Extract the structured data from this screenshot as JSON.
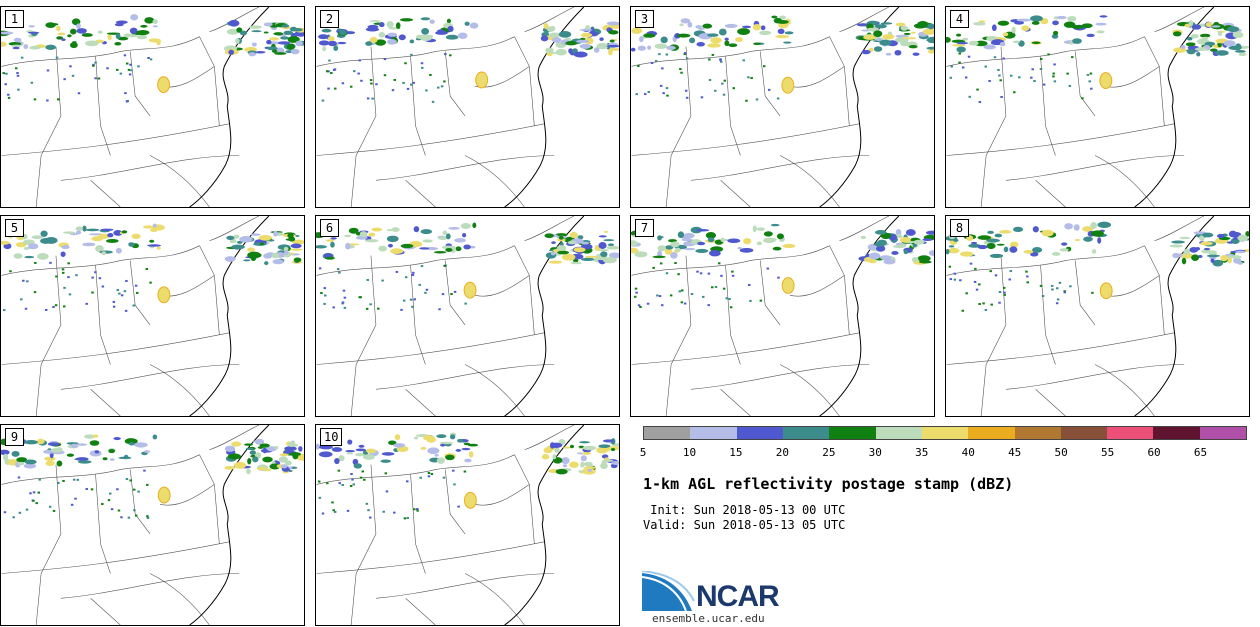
{
  "panels": [
    {
      "label": "1"
    },
    {
      "label": "2"
    },
    {
      "label": "3"
    },
    {
      "label": "4"
    },
    {
      "label": "5"
    },
    {
      "label": "6"
    },
    {
      "label": "7"
    },
    {
      "label": "8"
    },
    {
      "label": "9"
    },
    {
      "label": "10"
    }
  ],
  "colorbar": {
    "colors": [
      "#a0a0a0",
      "#b4bce8",
      "#5058d0",
      "#3c8c8c",
      "#108010",
      "#bcdcbc",
      "#ecdc6c",
      "#ecac20",
      "#b07830",
      "#885038",
      "#ec5078",
      "#601430",
      "#b050a8"
    ],
    "ticks": [
      "5",
      "10",
      "15",
      "20",
      "25",
      "30",
      "35",
      "40",
      "45",
      "50",
      "55",
      "60",
      "65"
    ]
  },
  "title": "1-km AGL reflectivity postage stamp (dBZ)",
  "init": " Init: Sun 2018-05-13 00 UTC",
  "valid": "Valid: Sun 2018-05-13 05 UTC",
  "logo": {
    "text": "NCAR",
    "url": "ensemble.ucar.edu"
  }
}
